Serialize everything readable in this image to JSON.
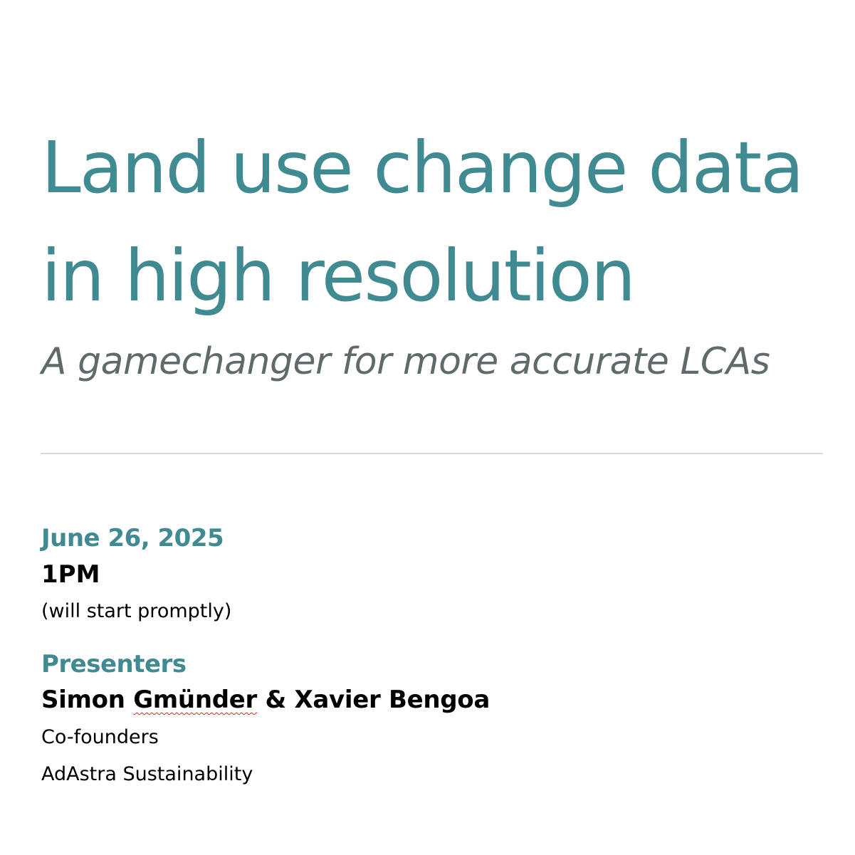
{
  "title": {
    "line1": "Land use change data",
    "line2": "in high resolution"
  },
  "subtitle": "A gamechanger for more accurate LCAs",
  "event": {
    "date": "June 26, 2025",
    "time": "1PM",
    "time_note": "(will start promptly)"
  },
  "presenters": {
    "heading": "Presenters",
    "name1_first": "Simon",
    "name1_last": "Gmünder",
    "separator": "&",
    "name2": "Xavier Bengoa",
    "role": "Co-founders",
    "organization": "AdAstra Sustainability"
  },
  "colors": {
    "accent": "#408a91",
    "subtitle": "#5f6a6b",
    "divider": "#d9d9d9",
    "text": "#000000",
    "spellcheck": "#e02020"
  }
}
